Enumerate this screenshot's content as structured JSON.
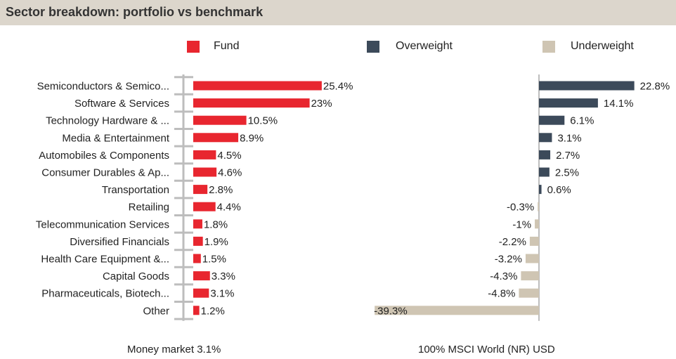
{
  "title": "Sector breakdown: portfolio vs benchmark",
  "legend": [
    {
      "label": "Fund",
      "color": "#e8262f"
    },
    {
      "label": "Overweight",
      "color": "#3c4a5a"
    },
    {
      "label": "Underweight",
      "color": "#cfc5b3"
    }
  ],
  "footer": {
    "left": "Money market 3.1%",
    "right": "100% MSCI World (NR) USD"
  },
  "chart_data": [
    {
      "type": "bar",
      "orientation": "horizontal",
      "series_name": "Fund",
      "color": "#e8262f",
      "categories": [
        "Semiconductors & Semico...",
        "Software & Services",
        "Technology Hardware & ...",
        "Media & Entertainment",
        "Automobiles & Components",
        "Consumer Durables & Ap...",
        "Transportation",
        "Retailing",
        "Telecommunication Services",
        "Diversified Financials",
        "Health Care Equipment &...",
        "Capital Goods",
        "Pharmaceuticals, Biotech...",
        "Other"
      ],
      "values": [
        25.4,
        23,
        10.5,
        8.9,
        4.5,
        4.6,
        2.8,
        4.4,
        1.8,
        1.9,
        1.5,
        3.3,
        3.1,
        1.2
      ],
      "labels": [
        "25.4%",
        "23%",
        "10.5%",
        "8.9%",
        "4.5%",
        "4.6%",
        "2.8%",
        "4.4%",
        "1.8%",
        "1.9%",
        "1.5%",
        "3.3%",
        "3.1%",
        "1.2%"
      ]
    },
    {
      "type": "bar",
      "orientation": "horizontal",
      "series": [
        {
          "name": "Overweight",
          "color": "#3c4a5a"
        },
        {
          "name": "Underweight",
          "color": "#cfc5b3"
        }
      ],
      "values": [
        22.8,
        14.1,
        6.1,
        3.1,
        2.7,
        2.5,
        0.6,
        -0.3,
        -1,
        -2.2,
        -3.2,
        -4.3,
        -4.8,
        -39.3
      ],
      "labels": [
        "22.8%",
        "14.1%",
        "6.1%",
        "3.1%",
        "2.7%",
        "2.5%",
        "0.6%",
        "-0.3%",
        "-1%",
        "-2.2%",
        "-3.2%",
        "-4.3%",
        "-4.8%",
        "-39.3%"
      ]
    }
  ]
}
